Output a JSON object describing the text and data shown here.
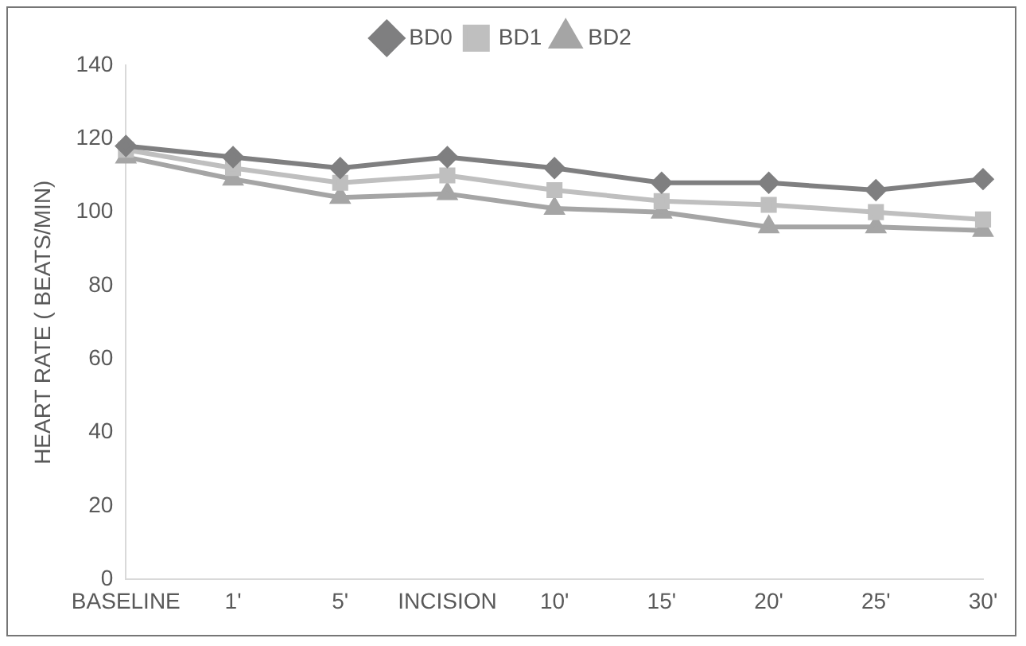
{
  "chart_data": {
    "type": "line",
    "ylabel": "HEART RATE ( BEATS/MIN)",
    "categories": [
      "BASELINE",
      "1'",
      "5'",
      "INCISION",
      "10'",
      "15'",
      "20'",
      "25'",
      "30'"
    ],
    "series": [
      {
        "name": "BD0",
        "color": "#7f7f80",
        "marker": "diamond",
        "values": [
          118,
          115,
          112,
          115,
          112,
          108,
          108,
          106,
          109
        ]
      },
      {
        "name": "BD1",
        "color": "#bfbfbf",
        "marker": "square",
        "values": [
          117,
          112,
          108,
          110,
          106,
          103,
          102,
          100,
          98
        ]
      },
      {
        "name": "BD2",
        "color": "#a5a5a5",
        "marker": "triangle",
        "values": [
          115,
          109,
          104,
          105,
          101,
          100,
          96,
          96,
          95
        ]
      }
    ],
    "ylim": [
      0,
      140
    ],
    "yticks": [
      0,
      20,
      40,
      60,
      80,
      100,
      120,
      140
    ],
    "grid": false,
    "legend": "top"
  }
}
